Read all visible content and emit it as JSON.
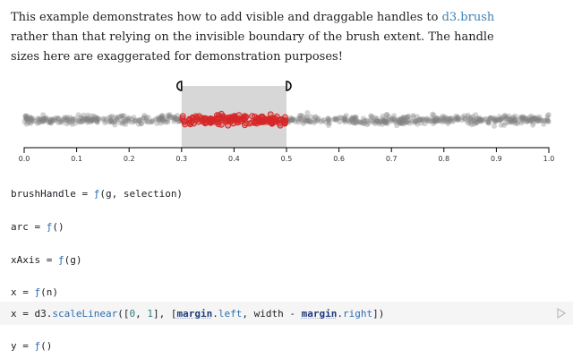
{
  "prose": {
    "text_before_link": "This example demonstrates how to add visible and draggable handles to ",
    "link": "d3.brush",
    "text_after_link": " rather than that relying on the invisible boundary of the brush extent. The handle sizes here are exaggerated for demonstration purposes!"
  },
  "chart_data": {
    "type": "scatter",
    "x_ticks": [
      "0.0",
      "0.1",
      "0.2",
      "0.3",
      "0.4",
      "0.5",
      "0.6",
      "0.7",
      "0.8",
      "0.9",
      "1.0"
    ],
    "xlim": [
      0,
      1
    ],
    "brush_selection": [
      0.3,
      0.5
    ],
    "point_count": 800,
    "colors": {
      "selected": "#d62728",
      "unselected": "#808080",
      "brush": "#d3d3d3"
    }
  },
  "cells": [
    {
      "tokens": [
        [
          "brushHandle = ",
          ""
        ],
        [
          "ƒ",
          "fn"
        ],
        [
          "(g, selection)",
          ""
        ]
      ]
    },
    {
      "tokens": [
        [
          "arc = ",
          ""
        ],
        [
          "ƒ",
          "fn"
        ],
        [
          "()",
          ""
        ]
      ]
    },
    {
      "tokens": [
        [
          "xAxis = ",
          ""
        ],
        [
          "ƒ",
          "fn"
        ],
        [
          "(g)",
          ""
        ]
      ]
    },
    {
      "tokens": [
        [
          "x = ",
          ""
        ],
        [
          "ƒ",
          "fn"
        ],
        [
          "(n)",
          ""
        ]
      ]
    },
    {
      "tokens": [
        [
          "x = d3.",
          ""
        ],
        [
          "scaleLinear",
          "fn"
        ],
        [
          "([",
          ""
        ],
        [
          "0",
          "num"
        ],
        [
          ", ",
          ""
        ],
        [
          "1",
          "num"
        ],
        [
          "], [",
          ""
        ],
        [
          "margin",
          "var"
        ],
        [
          ".",
          ""
        ],
        [
          "left",
          "prop"
        ],
        [
          ", width - ",
          ""
        ],
        [
          "margin",
          "var"
        ],
        [
          ".",
          ""
        ],
        [
          "right",
          "prop"
        ],
        [
          "])",
          ""
        ]
      ],
      "active": true
    },
    {
      "tokens": [
        [
          "y = ",
          ""
        ],
        [
          "ƒ",
          "fn"
        ],
        [
          "()",
          ""
        ]
      ]
    }
  ],
  "icons": {
    "run": "play-outline-icon"
  }
}
